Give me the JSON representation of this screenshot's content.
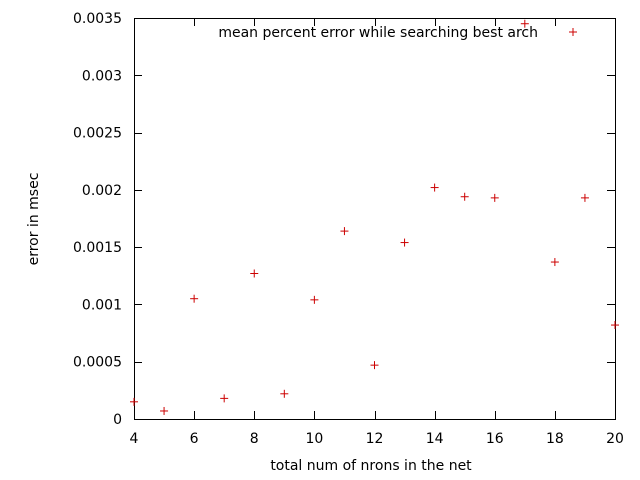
{
  "chart_data": {
    "type": "scatter",
    "xlabel": "total num of nrons in the net",
    "ylabel": "error in msec",
    "xlim": [
      4,
      20
    ],
    "ylim": [
      0,
      0.0035
    ],
    "x_ticks": [
      4,
      6,
      8,
      10,
      12,
      14,
      16,
      18,
      20
    ],
    "x_tick_labels": [
      "4",
      "6",
      "8",
      "10",
      "12",
      "14",
      "16",
      "18",
      "20"
    ],
    "y_ticks": [
      0,
      0.0005,
      0.001,
      0.0015,
      0.002,
      0.0025,
      0.003,
      0.0035
    ],
    "y_tick_labels": [
      "0",
      "0.0005",
      "0.001",
      "0.0015",
      "0.002",
      "0.0025",
      "0.003",
      "0.0035"
    ],
    "grid": false,
    "legend_position": "top-right",
    "series": [
      {
        "name": "mean percent error while searching best arch",
        "color": "#cc0000",
        "marker": "plus",
        "points": [
          {
            "x": 4,
            "y": 0.00015
          },
          {
            "x": 5,
            "y": 7e-05
          },
          {
            "x": 6,
            "y": 0.00105
          },
          {
            "x": 7,
            "y": 0.00018
          },
          {
            "x": 8,
            "y": 0.00127
          },
          {
            "x": 9,
            "y": 0.00022
          },
          {
            "x": 10,
            "y": 0.00104
          },
          {
            "x": 11,
            "y": 0.00164
          },
          {
            "x": 12,
            "y": 0.00047
          },
          {
            "x": 13,
            "y": 0.00154
          },
          {
            "x": 14,
            "y": 0.00202
          },
          {
            "x": 15,
            "y": 0.00194
          },
          {
            "x": 16,
            "y": 0.00193
          },
          {
            "x": 17,
            "y": 0.00345
          },
          {
            "x": 18,
            "y": 0.00137
          },
          {
            "x": 19,
            "y": 0.00193
          },
          {
            "x": 20,
            "y": 0.00082
          }
        ]
      }
    ]
  }
}
